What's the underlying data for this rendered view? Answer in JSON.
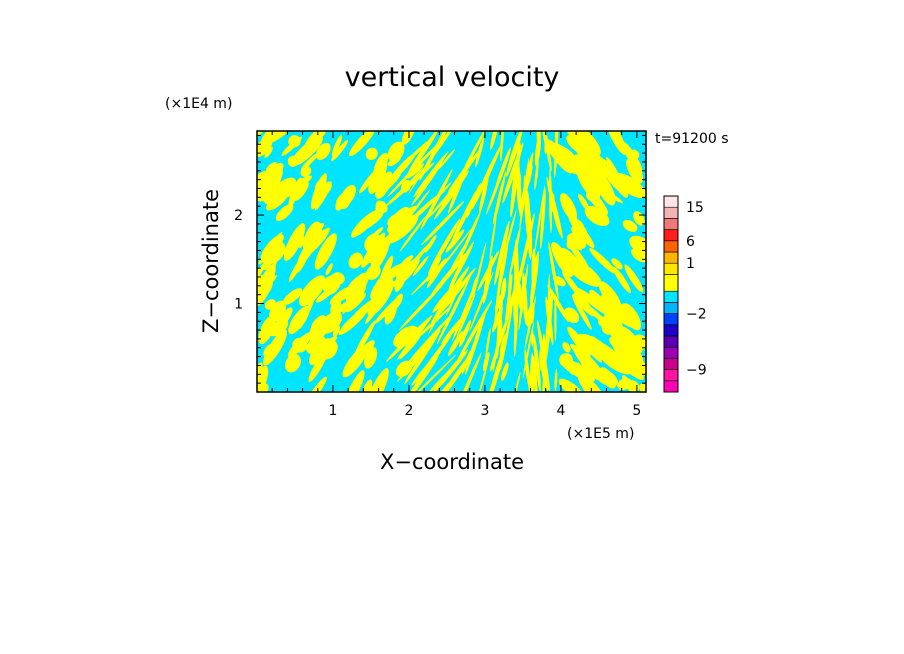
{
  "chart_data": {
    "type": "heatmap",
    "title": "vertical velocity",
    "xlabel": "X−coordinate",
    "ylabel": "Z−coordinate",
    "x_units": "(×1E5 m)",
    "y_units": "(×1E4 m)",
    "time_label": "t=91200 s",
    "xlim": [
      0,
      5.12
    ],
    "ylim": [
      0,
      2.95
    ],
    "x_ticks": [
      {
        "v": 1,
        "label": "1"
      },
      {
        "v": 2,
        "label": "2"
      },
      {
        "v": 3,
        "label": "3"
      },
      {
        "v": 4,
        "label": "4"
      },
      {
        "v": 5,
        "label": "5"
      }
    ],
    "y_ticks": [
      {
        "v": 1,
        "label": "1"
      },
      {
        "v": 2,
        "label": "2"
      }
    ],
    "field_colors": {
      "positive": "#ffff00",
      "negative": "#00e5ff"
    },
    "colorbar": {
      "levels": [
        {
          "label": "",
          "color": "#ff00b4"
        },
        {
          "label": "-9",
          "color": "#ff14a0"
        },
        {
          "label": "",
          "color": "#c8008c"
        },
        {
          "label": "",
          "color": "#9a00b4"
        },
        {
          "label": "",
          "color": "#5a00b4"
        },
        {
          "label": "",
          "color": "#1e00c8"
        },
        {
          "label": "-2",
          "color": "#0040ff"
        },
        {
          "label": "",
          "color": "#00b4ff"
        },
        {
          "label": "",
          "color": "#00e5ff"
        },
        {
          "label": "",
          "color": "#ffff00"
        },
        {
          "label": "1",
          "color": "#ffe600"
        },
        {
          "label": "",
          "color": "#ffb400"
        },
        {
          "label": "6",
          "color": "#ff6400"
        },
        {
          "label": "",
          "color": "#ff1e1e"
        },
        {
          "label": "",
          "color": "#f07878"
        },
        {
          "label": "15",
          "color": "#f5b4b4"
        },
        {
          "label": "",
          "color": "#fde6e6"
        }
      ]
    }
  }
}
